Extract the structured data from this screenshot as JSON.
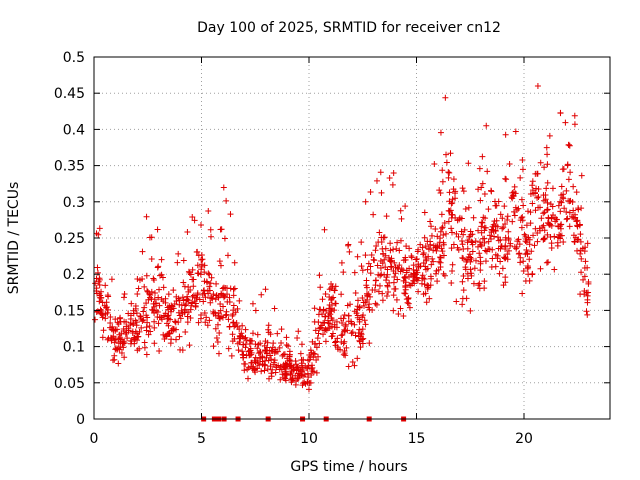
{
  "chart_data": {
    "type": "scatter",
    "title": "Day 100 of 2025, SRMTID for receiver cn12",
    "xlabel": "GPS time / hours",
    "ylabel": "SRMTID / TECUs",
    "xlim": [
      0,
      24
    ],
    "ylim": [
      0,
      0.5
    ],
    "x_ticks": [
      0,
      5,
      10,
      15,
      20
    ],
    "y_ticks": [
      0,
      0.05,
      0.1,
      0.15,
      0.2,
      0.25,
      0.3,
      0.35,
      0.4,
      0.45,
      0.5
    ],
    "x_tick_labels": [
      "0",
      "5",
      "10",
      "15",
      "20"
    ],
    "y_tick_labels": [
      "0",
      "0.05",
      "0.1",
      "0.15",
      "0.2",
      "0.25",
      "0.3",
      "0.35",
      "0.4",
      "0.45",
      "0.5"
    ],
    "grid": true,
    "marker": "plus",
    "color": "#e00000",
    "series_trend": {
      "name": "SRMTID",
      "x": [
        0,
        0.5,
        1,
        1.5,
        2,
        2.5,
        3,
        3.5,
        4,
        4.5,
        5,
        5.5,
        6,
        6.5,
        7,
        7.5,
        8,
        8.5,
        9,
        9.5,
        10,
        10.5,
        11,
        11.5,
        12,
        12.5,
        13,
        13.5,
        14,
        14.5,
        15,
        15.5,
        16,
        16.5,
        17,
        17.5,
        18,
        18.5,
        19,
        19.5,
        20,
        20.5,
        21,
        21.5,
        22,
        22.5,
        23
      ],
      "values": [
        0.19,
        0.14,
        0.11,
        0.12,
        0.13,
        0.15,
        0.16,
        0.14,
        0.15,
        0.16,
        0.2,
        0.15,
        0.17,
        0.14,
        0.09,
        0.08,
        0.09,
        0.08,
        0.07,
        0.07,
        0.06,
        0.12,
        0.16,
        0.12,
        0.12,
        0.15,
        0.2,
        0.22,
        0.2,
        0.19,
        0.21,
        0.2,
        0.24,
        0.3,
        0.22,
        0.22,
        0.25,
        0.26,
        0.24,
        0.3,
        0.22,
        0.29,
        0.3,
        0.24,
        0.32,
        0.25,
        0.17
      ],
      "spread": [
        0.04,
        0.04,
        0.03,
        0.03,
        0.04,
        0.05,
        0.05,
        0.04,
        0.05,
        0.05,
        0.05,
        0.05,
        0.06,
        0.04,
        0.03,
        0.03,
        0.03,
        0.03,
        0.02,
        0.02,
        0.02,
        0.04,
        0.04,
        0.04,
        0.04,
        0.05,
        0.06,
        0.05,
        0.05,
        0.05,
        0.04,
        0.05,
        0.06,
        0.08,
        0.07,
        0.06,
        0.06,
        0.07,
        0.06,
        0.06,
        0.05,
        0.07,
        0.07,
        0.05,
        0.07,
        0.05,
        0.04
      ],
      "points_per_interval": 34
    },
    "zero_values_at_x": [
      5.1,
      5.6,
      5.8,
      6.05,
      6.7,
      8.1,
      9.7,
      10.8,
      12.8,
      14.4
    ]
  }
}
